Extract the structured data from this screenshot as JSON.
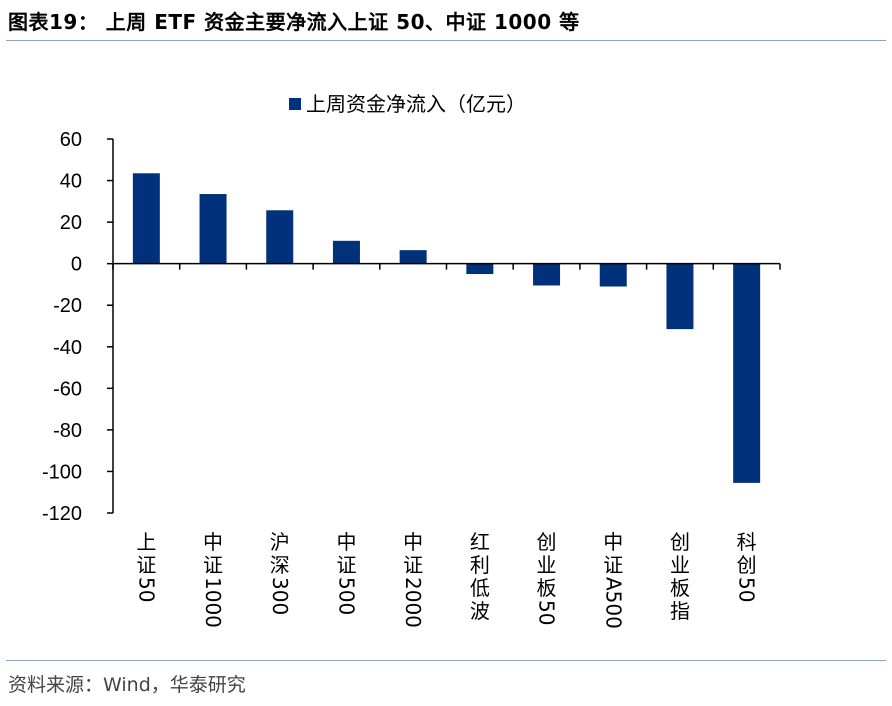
{
  "page": {
    "title": "图表19：  上周 ETF 资金主要净流入上证 50、中证 1000 等",
    "source": "资料来源：Wind，华泰研究"
  },
  "chart_data": {
    "type": "bar",
    "categories": [
      "上证50",
      "中证1000",
      "沪深300",
      "中证500",
      "中证2000",
      "红利低波",
      "创业板50",
      "中证A500",
      "创业板指",
      "科创50"
    ],
    "series": [
      {
        "name": "上周资金净流入（亿元）",
        "values": [
          43.5,
          33.5,
          25.7,
          11.0,
          6.5,
          -5.0,
          -10.5,
          -11.0,
          -31.5,
          -105.5
        ],
        "color": "#00317a"
      }
    ],
    "yticks": [
      "60",
      "40",
      "20",
      "0",
      "-20",
      "-40",
      "-60",
      "-80",
      "-100",
      "-120"
    ],
    "ylim": [
      -120,
      60
    ],
    "grid": false,
    "legend": "top-center"
  }
}
